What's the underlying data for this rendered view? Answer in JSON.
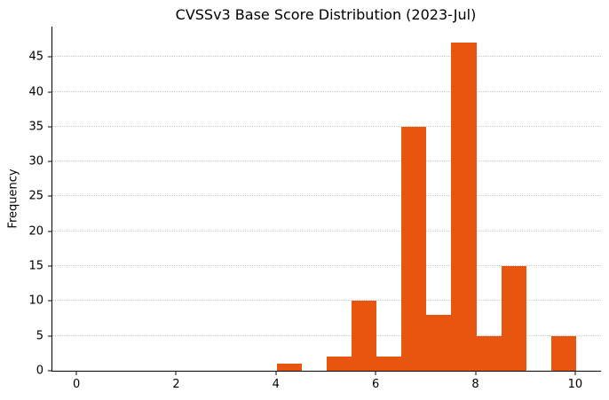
{
  "chart_data": {
    "type": "bar",
    "subtype": "histogram",
    "title": "CVSSv3 Base Score Distribution (2023-Jul)",
    "xlabel": "",
    "ylabel": "Frequency",
    "bar_color": "#e8550e",
    "grid_color": "#c9c9c9",
    "axis_color": "#000000",
    "grid": "horizontal-dotted",
    "legend_position": "none",
    "xlim": [
      -0.5,
      10.5
    ],
    "ylim": [
      0,
      49.35
    ],
    "xticks": [
      0,
      2,
      4,
      6,
      8,
      10
    ],
    "yticks": [
      0,
      5,
      10,
      15,
      20,
      25,
      30,
      35,
      40,
      45
    ],
    "bin_width": 0.5,
    "bins": [
      {
        "start": 4.0,
        "end": 4.5,
        "count": 1
      },
      {
        "start": 4.5,
        "end": 5.0,
        "count": 0
      },
      {
        "start": 5.0,
        "end": 5.5,
        "count": 2
      },
      {
        "start": 5.5,
        "end": 6.0,
        "count": 10
      },
      {
        "start": 6.0,
        "end": 6.5,
        "count": 2
      },
      {
        "start": 6.5,
        "end": 7.0,
        "count": 35
      },
      {
        "start": 7.0,
        "end": 7.5,
        "count": 8
      },
      {
        "start": 7.5,
        "end": 8.0,
        "count": 47
      },
      {
        "start": 8.0,
        "end": 8.5,
        "count": 5
      },
      {
        "start": 8.5,
        "end": 9.0,
        "count": 15
      },
      {
        "start": 9.0,
        "end": 9.5,
        "count": 0
      },
      {
        "start": 9.5,
        "end": 10.0,
        "count": 5
      }
    ]
  }
}
